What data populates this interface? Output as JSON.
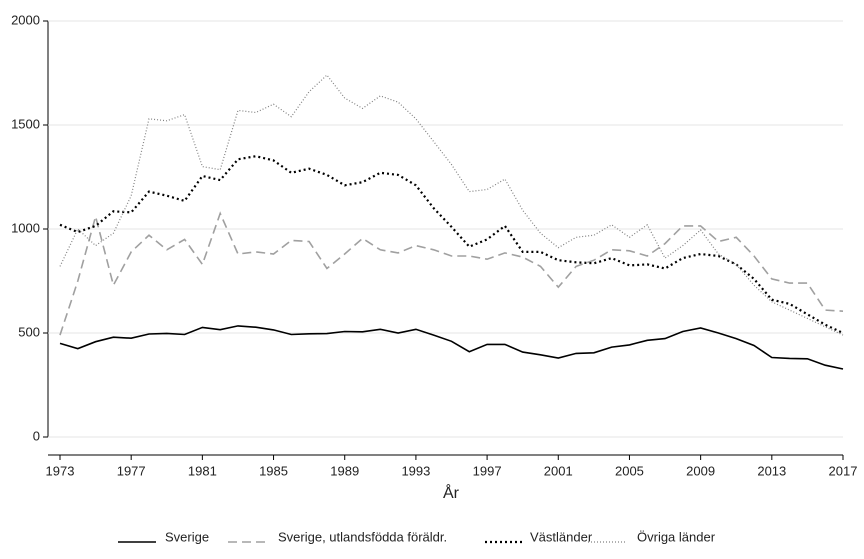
{
  "chart_data": {
    "type": "line",
    "x_label": "År",
    "x": [
      1973,
      1974,
      1975,
      1976,
      1977,
      1978,
      1979,
      1980,
      1981,
      1982,
      1983,
      1984,
      1985,
      1986,
      1987,
      1988,
      1989,
      1990,
      1991,
      1992,
      1993,
      1994,
      1995,
      1996,
      1997,
      1998,
      1999,
      2000,
      2001,
      2002,
      2003,
      2004,
      2005,
      2006,
      2007,
      2008,
      2009,
      2010,
      2011,
      2012,
      2013,
      2014,
      2015,
      2016,
      2017
    ],
    "xlim": [
      1973,
      2017
    ],
    "xticks": [
      1973,
      1977,
      1981,
      1985,
      1989,
      1993,
      1997,
      2001,
      2005,
      2009,
      2013,
      2017
    ],
    "ylim": [
      0,
      2000
    ],
    "yticks": [
      0,
      500,
      1000,
      1500,
      2000
    ],
    "grid": true,
    "legend": "bottom",
    "series": [
      {
        "name": "Sverige",
        "color": "#000000",
        "style": "solid",
        "values": [
          450,
          425,
          458,
          480,
          475,
          495,
          498,
          493,
          527,
          516,
          534,
          528,
          515,
          493,
          496,
          497,
          507,
          506,
          518,
          500,
          518,
          490,
          460,
          410,
          445,
          445,
          408,
          395,
          380,
          402,
          405,
          432,
          443,
          465,
          473,
          507,
          524,
          500,
          473,
          440,
          382,
          378,
          376,
          345,
          327
        ]
      },
      {
        "name": "Sverige, utlandsfödda föräldr.",
        "color": "#a0a0a0",
        "style": "dashed",
        "values": [
          490,
          750,
          1060,
          730,
          890,
          970,
          900,
          950,
          830,
          1075,
          880,
          890,
          880,
          945,
          940,
          810,
          880,
          955,
          900,
          885,
          920,
          900,
          870,
          870,
          855,
          885,
          865,
          820,
          720,
          820,
          850,
          900,
          895,
          870,
          930,
          1015,
          1015,
          940,
          960,
          870,
          760,
          740,
          740,
          610,
          605
        ]
      },
      {
        "name": "Västländer",
        "color": "#000000",
        "style": "dotted",
        "values": [
          1020,
          985,
          1015,
          1085,
          1080,
          1180,
          1160,
          1135,
          1255,
          1235,
          1335,
          1350,
          1330,
          1270,
          1290,
          1260,
          1210,
          1225,
          1270,
          1260,
          1210,
          1100,
          1010,
          915,
          950,
          1015,
          890,
          890,
          850,
          840,
          835,
          860,
          825,
          830,
          810,
          860,
          880,
          870,
          830,
          760,
          660,
          640,
          590,
          540,
          500
        ]
      },
      {
        "name": "Övriga länder",
        "color": "#808080",
        "style": "finedot",
        "values": [
          820,
          1000,
          920,
          980,
          1160,
          1530,
          1520,
          1550,
          1300,
          1285,
          1570,
          1560,
          1600,
          1540,
          1660,
          1740,
          1630,
          1580,
          1640,
          1610,
          1530,
          1420,
          1310,
          1180,
          1190,
          1240,
          1090,
          980,
          910,
          960,
          970,
          1020,
          960,
          1020,
          860,
          920,
          995,
          880,
          830,
          730,
          650,
          610,
          570,
          530,
          490
        ]
      }
    ]
  }
}
